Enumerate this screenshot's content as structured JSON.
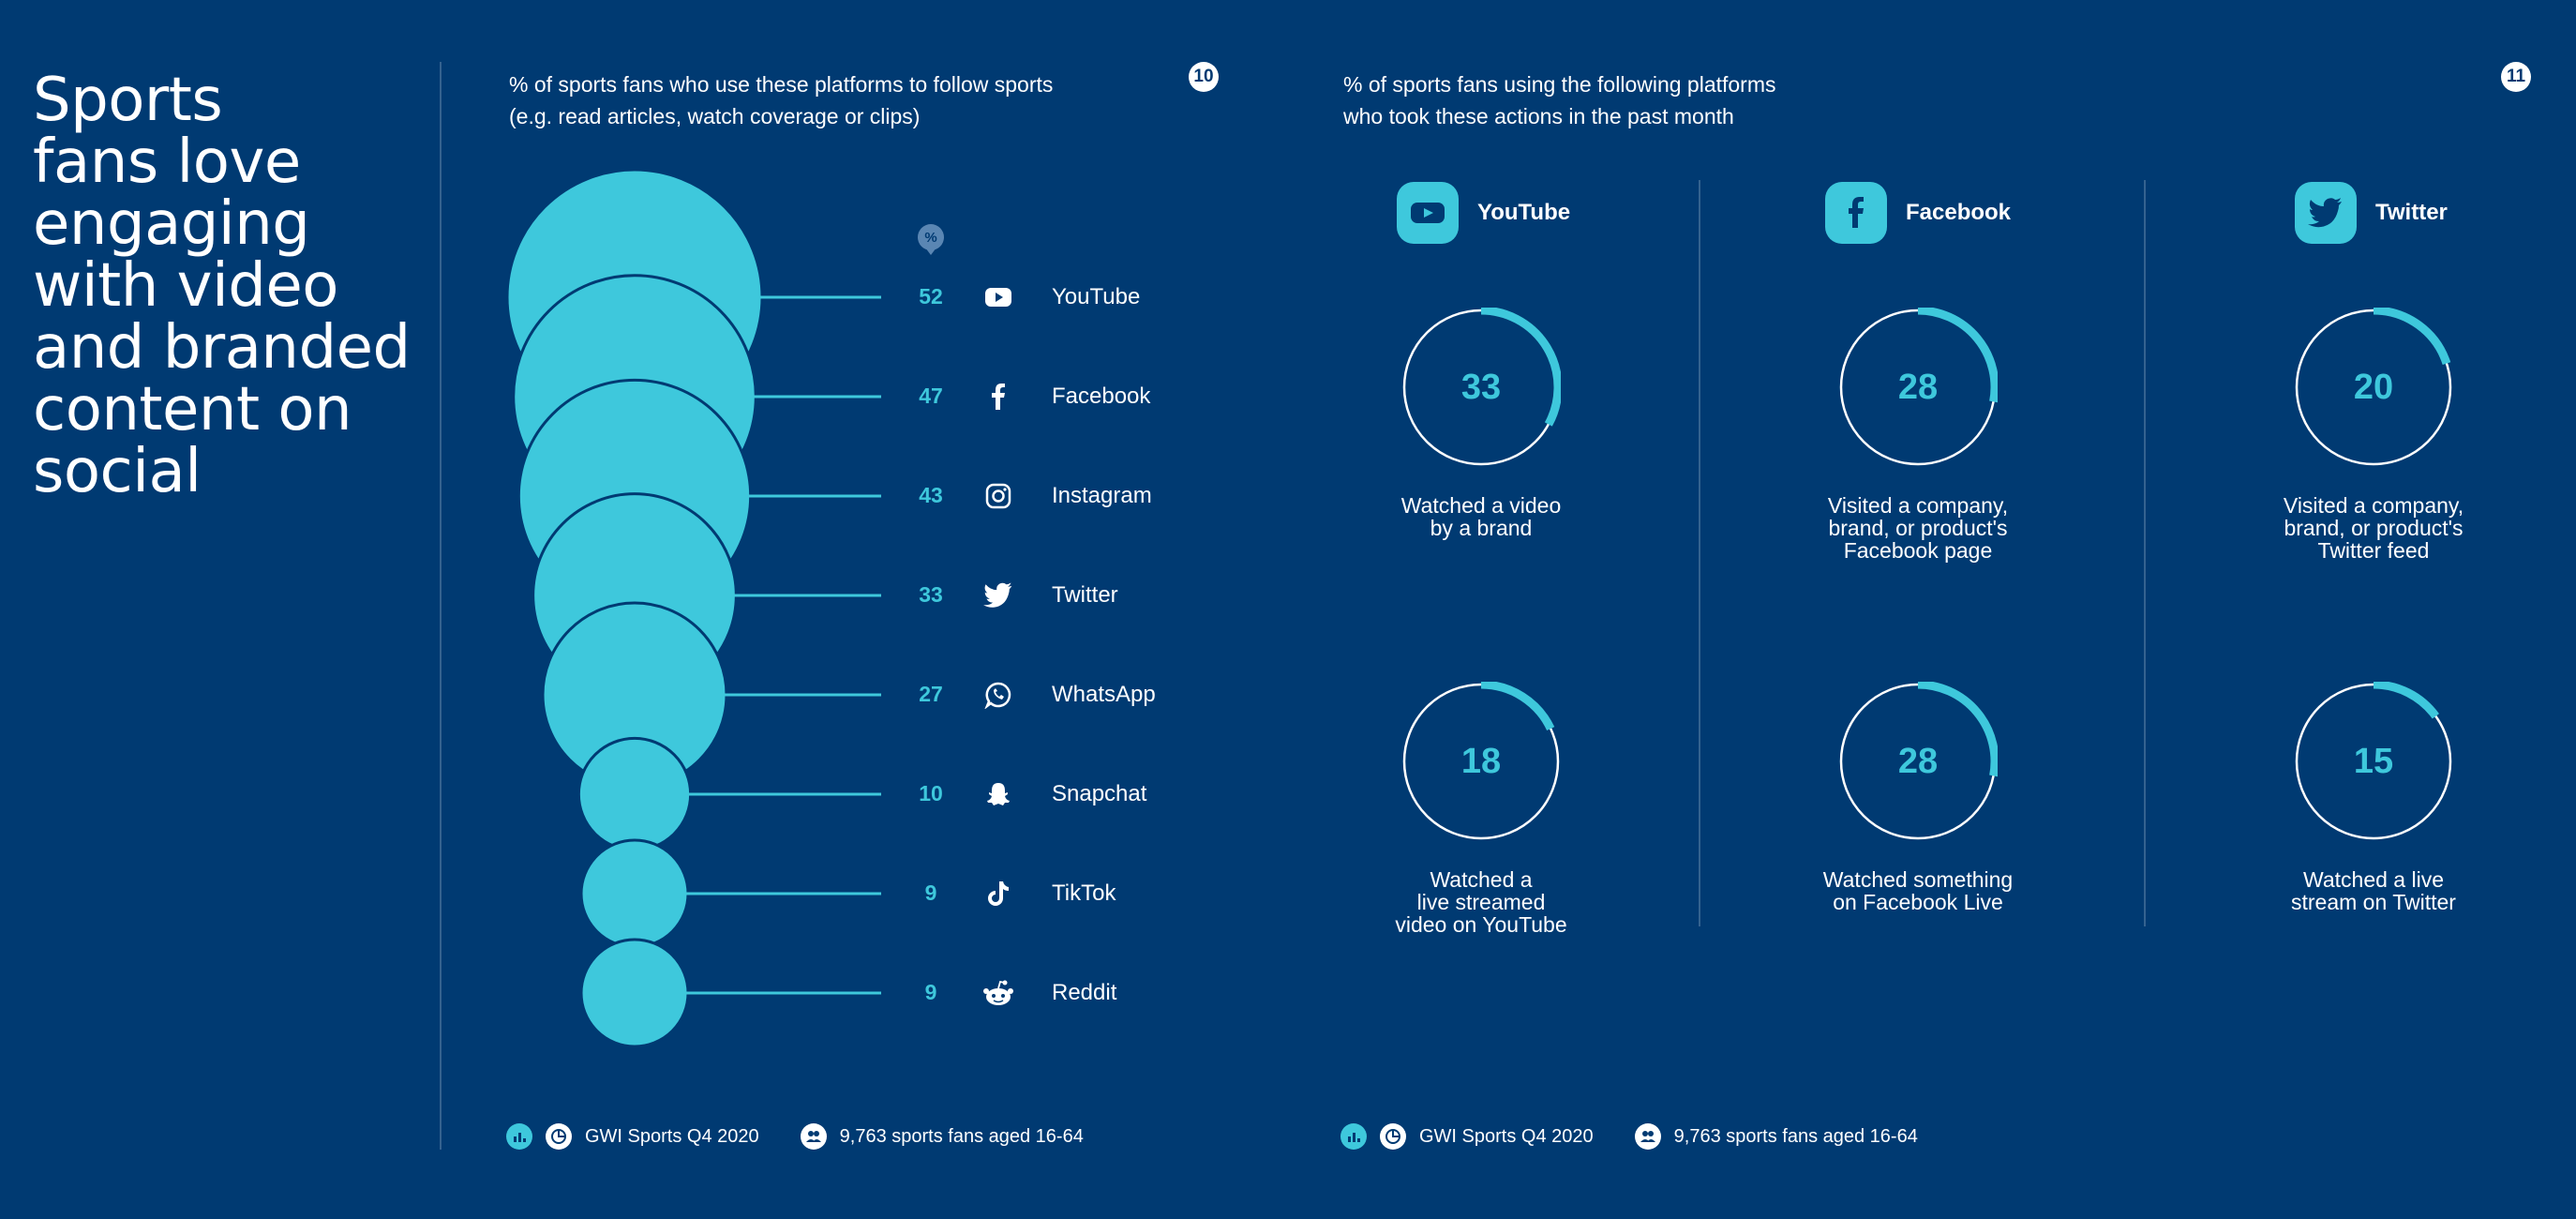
{
  "headline": {
    "lines": [
      "Sports",
      "fans love",
      "engaging",
      "with video",
      "and branded",
      "content on",
      "social"
    ]
  },
  "left_panel": {
    "subtitle_lines": [
      "% of sports fans who use these platforms to follow sports",
      "(e.g. read articles, watch coverage or clips)"
    ],
    "page_number": "10",
    "percent_marker": "%",
    "footer": {
      "source": "GWI Sports Q4 2020",
      "base": "9,763 sports fans aged 16-64"
    }
  },
  "right_panel": {
    "subtitle_lines": [
      "% of sports fans using the following platforms",
      "who took these actions in the past month"
    ],
    "page_number": "11",
    "footer": {
      "source": "GWI Sports Q4 2020",
      "base": "9,763 sports fans aged 16-64"
    }
  },
  "colors": {
    "background": "#003a72",
    "accent": "#3ec8dc",
    "divider": "#34628f",
    "text": "#ffffff"
  },
  "chart_data": [
    {
      "type": "bubble",
      "title": "% of sports fans who use these platforms to follow sports (e.g. read articles, watch coverage or clips)",
      "unit": "%",
      "categories": [
        "YouTube",
        "Facebook",
        "Instagram",
        "Twitter",
        "WhatsApp",
        "Snapchat",
        "TikTok",
        "Reddit"
      ],
      "values": [
        52,
        47,
        43,
        33,
        27,
        10,
        9,
        9
      ],
      "icons": [
        "youtube-icon",
        "facebook-icon",
        "instagram-icon",
        "twitter-icon",
        "whatsapp-icon",
        "snapchat-icon",
        "tiktok-icon",
        "reddit-icon"
      ]
    },
    {
      "type": "donut-gauge",
      "title": "% of sports fans using the following platforms who took these actions in the past month",
      "max": 100,
      "columns": [
        {
          "platform": "YouTube",
          "icon": "youtube-icon",
          "metrics": [
            {
              "value": 33,
              "label": "33",
              "caption_lines": [
                "Watched a video",
                "by a brand"
              ]
            },
            {
              "value": 18,
              "label": "18",
              "caption_lines": [
                "Watched a",
                "live streamed",
                "video on YouTube"
              ]
            }
          ]
        },
        {
          "platform": "Facebook",
          "icon": "facebook-icon",
          "metrics": [
            {
              "value": 28,
              "label": "28",
              "caption_lines": [
                "Visited a company,",
                "brand, or product's",
                "Facebook page"
              ]
            },
            {
              "value": 28,
              "label": "28",
              "caption_lines": [
                "Watched something",
                "on Facebook Live"
              ]
            }
          ]
        },
        {
          "platform": "Twitter",
          "icon": "twitter-icon",
          "metrics": [
            {
              "value": 20,
              "label": "20",
              "caption_lines": [
                "Visited a company,",
                "brand, or product's",
                "Twitter feed"
              ]
            },
            {
              "value": 15,
              "label": "15",
              "caption_lines": [
                "Watched a live",
                "stream on Twitter"
              ]
            }
          ]
        }
      ]
    }
  ]
}
